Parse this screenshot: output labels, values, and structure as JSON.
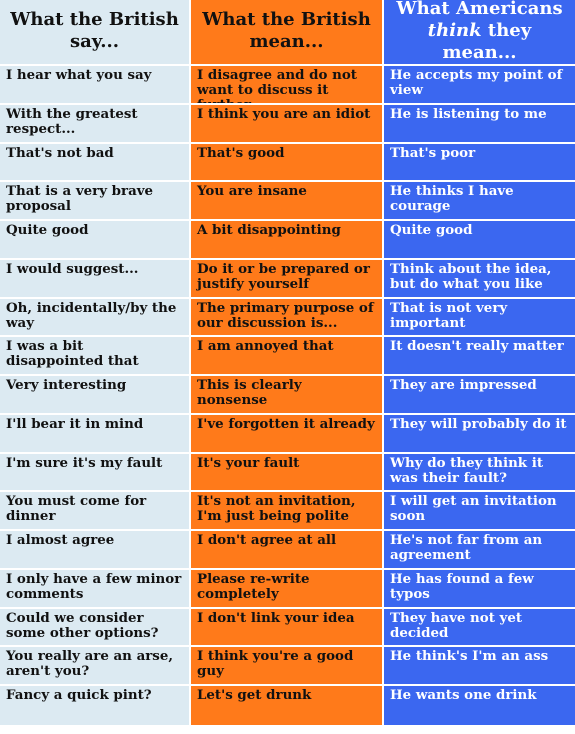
{
  "table": {
    "headers": {
      "british_say": "What the British say...",
      "british_mean": "What the British mean...",
      "americans_think_prefix": "What Americans ",
      "americans_think_emph": "think",
      "americans_think_suffix": " they mean..."
    },
    "rows": [
      {
        "say": "I hear what you say",
        "mean": "I disagree and do not want to discuss it further",
        "think": "He accepts my point of view"
      },
      {
        "say": "With the greatest respect...",
        "mean": "I think you are an idiot",
        "think": "He is listening to me"
      },
      {
        "say": "That's not bad",
        "mean": "That's good",
        "think": "That's poor"
      },
      {
        "say": "That is a very brave proposal",
        "mean": "You are insane",
        "think": "He thinks I have courage"
      },
      {
        "say": "Quite good",
        "mean": "A bit disappointing",
        "think": "Quite good"
      },
      {
        "say": "I would suggest...",
        "mean": "Do it or be prepared or justify yourself",
        "think": "Think about the idea, but do what you like"
      },
      {
        "say": "Oh, incidentally/by the way",
        "mean": "The primary purpose of our discussion is...",
        "think": "That is not very important"
      },
      {
        "say": "I was a bit disappointed that",
        "mean": "I am annoyed that",
        "think": "It doesn't really matter"
      },
      {
        "say": "Very interesting",
        "mean": "This is clearly nonsense",
        "think": "They are impressed"
      },
      {
        "say": "I'll bear it in mind",
        "mean": "I've forgotten it already",
        "think": "They will probably do it"
      },
      {
        "say": "I'm sure it's my fault",
        "mean": "It's your fault",
        "think": "Why do they think it was their fault?"
      },
      {
        "say": "You must come for dinner",
        "mean": "It's not an invitation, I'm just being polite",
        "think": "I will get an invitation soon"
      },
      {
        "say": "I almost agree",
        "mean": "I don't agree at all",
        "think": "He's not far from an agreement"
      },
      {
        "say": "I only have a few minor comments",
        "mean": "Please re-write completely",
        "think": "He has found a few typos"
      },
      {
        "say": "Could we consider some other options?",
        "mean": "I don't link your idea",
        "think": "They have not yet decided"
      },
      {
        "say": "You really are an arse, aren't you?",
        "mean": "I think you're a good guy",
        "think": "He think's I'm an ass"
      },
      {
        "say": "Fancy a quick pint?",
        "mean": "Let's get drunk",
        "think": "He wants one drink"
      }
    ]
  },
  "colors": {
    "british_say_bg": "#dceaf2",
    "british_mean_bg": "#ff7a1a",
    "americans_think_bg": "#3b67f0",
    "divider": "#ffffff"
  }
}
